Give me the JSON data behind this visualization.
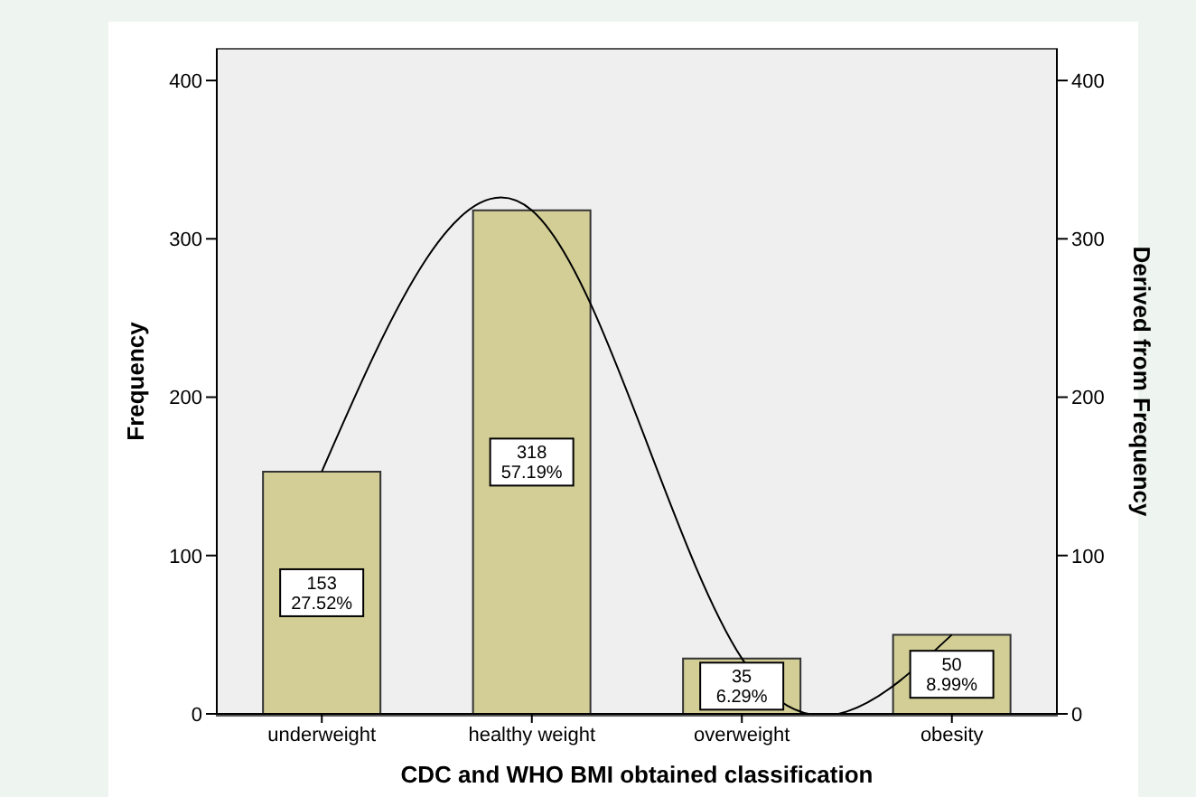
{
  "chart_data": {
    "type": "bar",
    "xlabel": "CDC and WHO BMI obtained classification",
    "ylabel": "Frequency",
    "y2label": "Derived from Frequency",
    "categories": [
      "underweight",
      "healthy weight",
      "overweight",
      "obesity"
    ],
    "series": [
      {
        "color": "#d2ce96",
        "values": [
          153,
          318,
          35,
          50
        ],
        "value_labels": [
          "153\n27.52%",
          "318\n57.19%",
          "35\n6.29%",
          "50\n8.99%"
        ]
      },
      {
        "type": "line",
        "color": "#000000",
        "values": [
          153,
          318,
          35,
          50
        ]
      }
    ],
    "ylim": [
      0,
      420
    ],
    "yticks": [
      0,
      100,
      200,
      300,
      400
    ],
    "y2lim": [
      0,
      420
    ],
    "y2ticks": [
      0,
      100,
      200,
      300,
      400
    ],
    "grid": false,
    "legend": false
  }
}
